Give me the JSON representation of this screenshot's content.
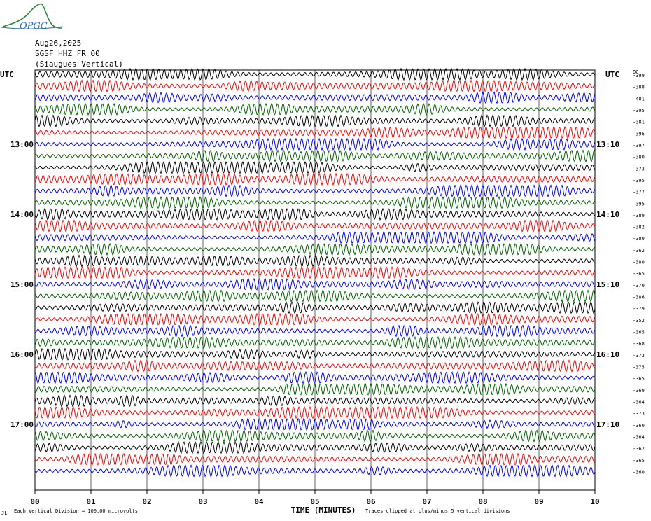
{
  "header": {
    "logo_text": "OPGC",
    "date": "Aug26,2025",
    "station": "SGSF HHZ FR 00",
    "location": "(Siaugues Vertical)"
  },
  "labels": {
    "utc_left": "UTC",
    "utc_right": "UTC",
    "dc": "DC",
    "x_title": "TIME (MINUTES)",
    "footnote_left": "Each Vertical Division =  100.00 microvolts",
    "footnote_right": "Traces clipped at plus/minus 5 vertical divisions",
    "corner_mark": "JL"
  },
  "colors": {
    "trace_cycle": [
      "#000000",
      "#ff0000",
      "#0000ff",
      "#006400"
    ],
    "grid": "#000000"
  },
  "chart_data": {
    "type": "line",
    "title": "SGSF HHZ FR 00 (Siaugues Vertical)",
    "xlabel": "TIME (MINUTES)",
    "xlim": [
      0,
      10
    ],
    "x_ticks": [
      "00",
      "01",
      "02",
      "03",
      "04",
      "05",
      "06",
      "07",
      "08",
      "09",
      "10"
    ],
    "traces_per_hour": 6,
    "left_hour_labels": [
      {
        "row": 6,
        "label": "13:00"
      },
      {
        "row": 12,
        "label": "14:00"
      },
      {
        "row": 18,
        "label": "15:00"
      },
      {
        "row": 24,
        "label": "16:00"
      },
      {
        "row": 30,
        "label": "17:00"
      }
    ],
    "right_hour_labels": [
      {
        "row": 6,
        "label": "13:10"
      },
      {
        "row": 12,
        "label": "14:10"
      },
      {
        "row": 18,
        "label": "15:10"
      },
      {
        "row": 24,
        "label": "16:10"
      },
      {
        "row": 30,
        "label": "17:10"
      }
    ],
    "dc_offsets": [
      -399,
      -388,
      -401,
      -395,
      -381,
      -396,
      -397,
      -380,
      -373,
      -395,
      -377,
      -395,
      -389,
      -382,
      -380,
      -362,
      -380,
      -365,
      -370,
      -386,
      -379,
      -352,
      -365,
      -368,
      -373,
      -375,
      -365,
      -369,
      -364,
      -373,
      -360,
      -364,
      -362,
      -365,
      -360
    ]
  }
}
